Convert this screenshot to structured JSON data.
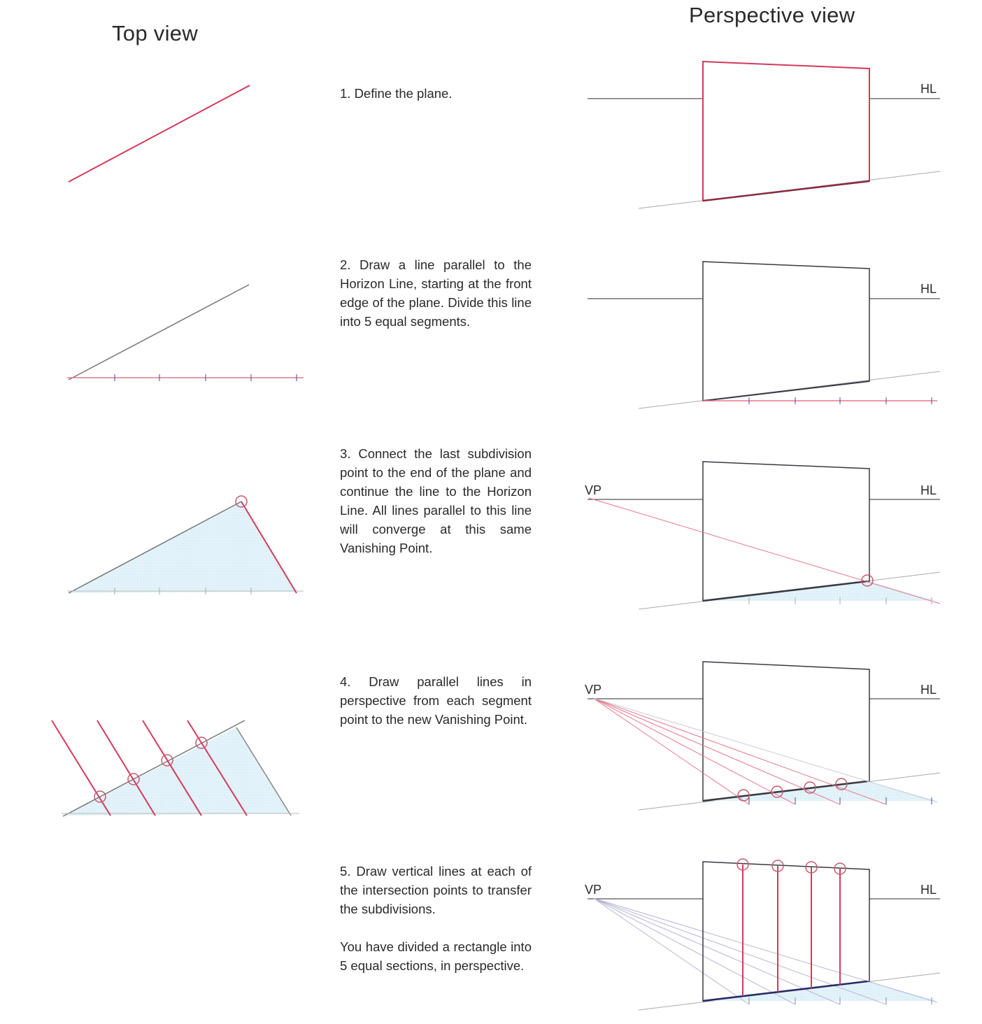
{
  "headers": {
    "top_view": "Top view",
    "perspective_view": "Perspective view"
  },
  "labels": {
    "horizon_line": "HL",
    "vanishing_point": "VP"
  },
  "steps": [
    {
      "number": 1,
      "paragraphs": [
        "1. Define the plane."
      ]
    },
    {
      "number": 2,
      "paragraphs": [
        "2. Draw a line parallel to the Horizon Line, starting at the front edge of the plane. Divide this line into 5 equal segments."
      ]
    },
    {
      "number": 3,
      "paragraphs": [
        "3. Connect the last subdivision point to the end of the plane and continue the line to the Horizon Line. All lines parallel to this line will converge at this same Vanishing Point."
      ]
    },
    {
      "number": 4,
      "paragraphs": [
        "4. Draw parallel lines in perspective from each segment point to the new Vanishing Point."
      ]
    },
    {
      "number": 5,
      "paragraphs": [
        "5. Draw vertical lines at each of the intersection points to transfer the subdivisions.",
        "You have divided a rectangle into 5 equal sections, in perspective."
      ]
    }
  ],
  "colors": {
    "plane_red": "#d63a5a",
    "construction_red": "#e7778c",
    "line_dark": "#3a3a44",
    "line_grey": "#8a8a8a",
    "tick_blue": "#4a4aa0",
    "fill_blue": "#dff1f8"
  }
}
